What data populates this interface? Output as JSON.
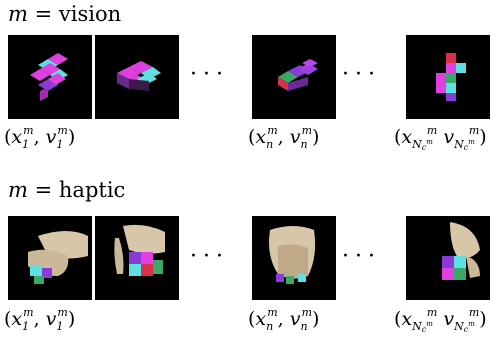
{
  "rows": [
    {
      "var": "m",
      "op": "=",
      "modality": "vision",
      "captions": [
        {
          "x": "x",
          "v": "v",
          "sub": "1",
          "sup": "m"
        },
        {
          "x": "x",
          "v": "v",
          "sub": "n",
          "sup": "m"
        },
        {
          "x": "x",
          "v": "v",
          "sub": "N",
          "subsub": "c",
          "subsup": "m",
          "sup": "m"
        }
      ]
    },
    {
      "var": "m",
      "op": "=",
      "modality": "haptic",
      "captions": [
        {
          "x": "x",
          "v": "v",
          "sub": "1",
          "sup": "m"
        },
        {
          "x": "x",
          "v": "v",
          "sub": "n",
          "sup": "m"
        },
        {
          "x": "x",
          "v": "v",
          "sub": "N",
          "subsub": "c",
          "subsup": "m",
          "sup": "m"
        }
      ]
    }
  ],
  "ellipsis": "···",
  "colors": {
    "magenta": "#e040e0",
    "cyan": "#5fe0e0",
    "green": "#3aa868",
    "red": "#d8304a",
    "purple": "#8a3ad8",
    "hand": "#d8c6a8"
  }
}
